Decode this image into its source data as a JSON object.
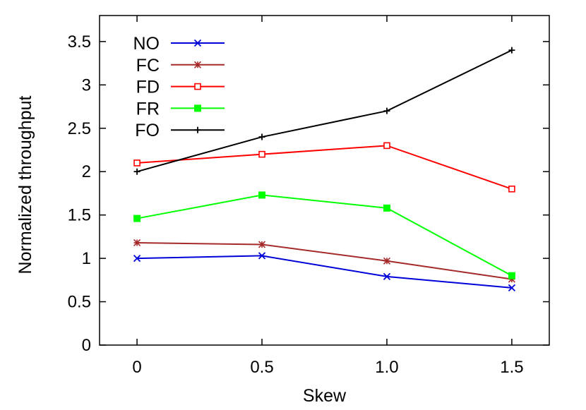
{
  "chart_data": {
    "type": "line",
    "xlabel": "Skew",
    "ylabel": "Normalized throughput",
    "xlim": [
      -0.15,
      1.65
    ],
    "ylim": [
      0,
      3.8
    ],
    "x_ticks": [
      {
        "value": 0,
        "label": "0"
      },
      {
        "value": 0.5,
        "label": "0.5"
      },
      {
        "value": 1.0,
        "label": "1.0"
      },
      {
        "value": 1.5,
        "label": "1.5"
      }
    ],
    "y_ticks": [
      {
        "value": 0,
        "label": "0"
      },
      {
        "value": 0.5,
        "label": "0.5"
      },
      {
        "value": 1,
        "label": "1"
      },
      {
        "value": 1.5,
        "label": "1.5"
      },
      {
        "value": 2,
        "label": "2"
      },
      {
        "value": 2.5,
        "label": "2.5"
      },
      {
        "value": 3,
        "label": "3"
      },
      {
        "value": 3.5,
        "label": "3.5"
      }
    ],
    "x": [
      0,
      0.5,
      1.0,
      1.5
    ],
    "series": [
      {
        "name": "NO",
        "color": "#0000d8",
        "marker": "x",
        "values": [
          1.0,
          1.03,
          0.79,
          0.66
        ]
      },
      {
        "name": "FC",
        "color": "#a52a2a",
        "marker": "star",
        "values": [
          1.18,
          1.16,
          0.97,
          0.76
        ]
      },
      {
        "name": "FD",
        "color": "#ff0000",
        "marker": "open-square",
        "values": [
          2.1,
          2.2,
          2.3,
          1.8
        ]
      },
      {
        "name": "FR",
        "color": "#00ff00",
        "marker": "filled-square",
        "values": [
          1.46,
          1.73,
          1.58,
          0.8
        ]
      },
      {
        "name": "FO",
        "color": "#000000",
        "marker": "plus",
        "values": [
          2.0,
          2.4,
          2.7,
          3.4
        ]
      }
    ],
    "grid": false,
    "legend": "top-left"
  }
}
